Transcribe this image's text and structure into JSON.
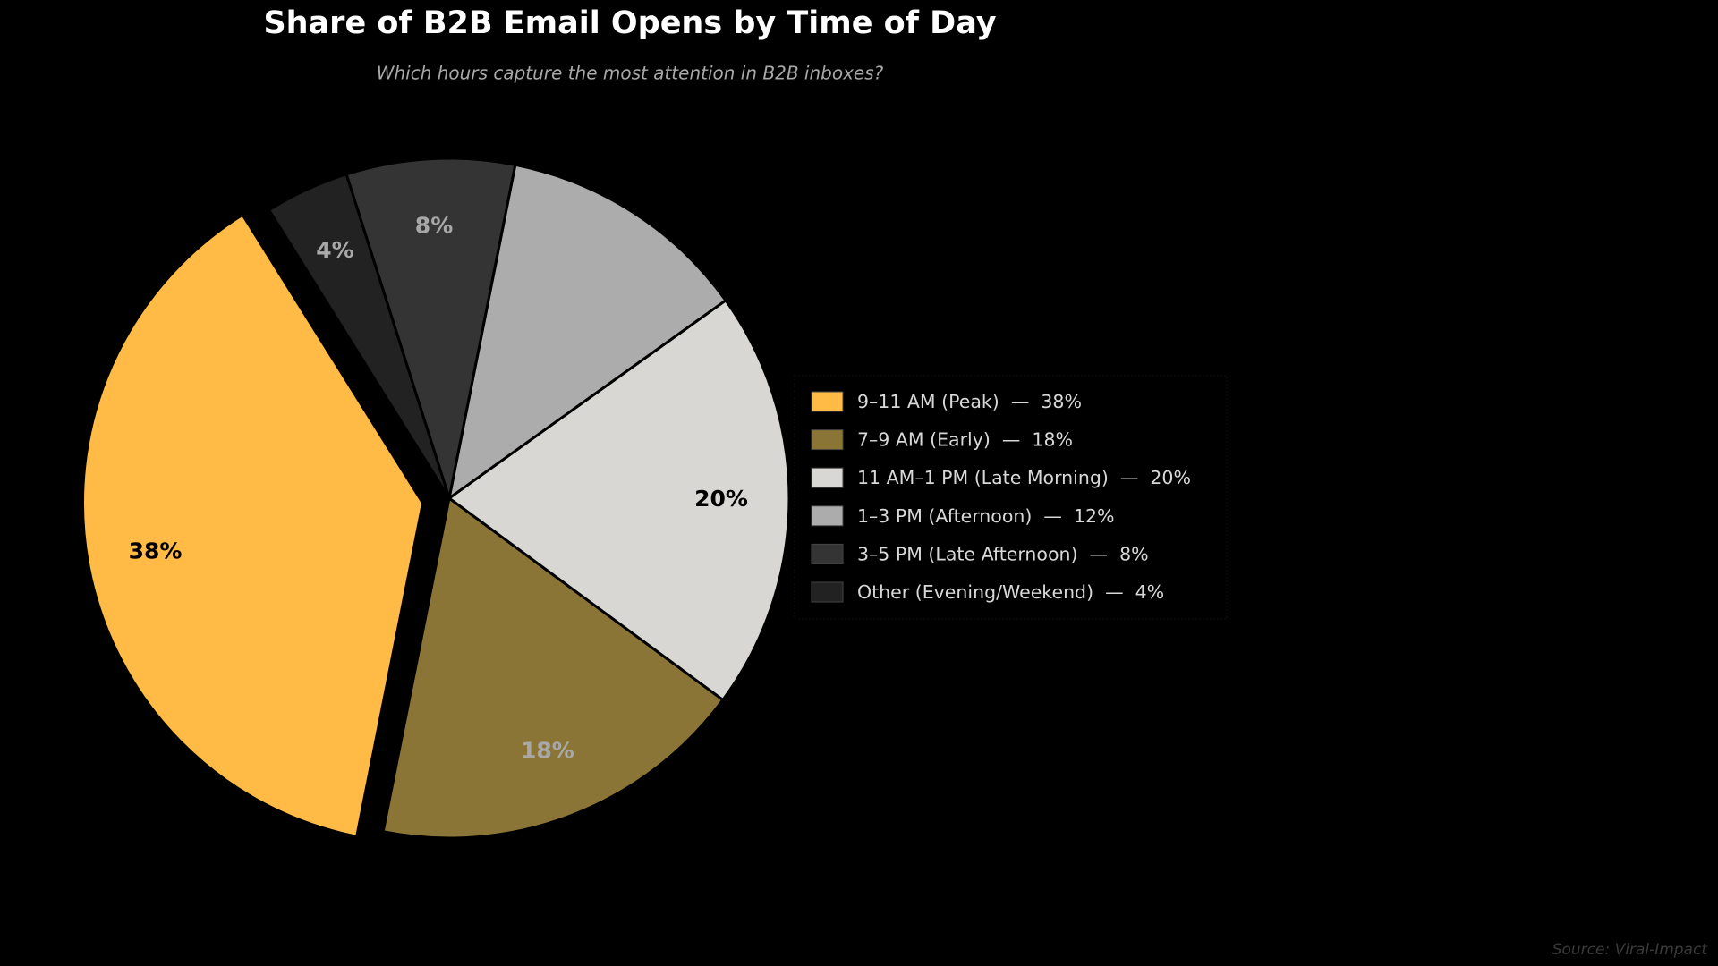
{
  "chart_data": {
    "type": "pie",
    "title": "Share of B2B Email Opens by Time of Day",
    "subtitle": "Which hours capture the most attention in B2B inboxes?",
    "categories": [
      "9–11 AM (Peak)  —  38%",
      "7–9 AM (Early)  —  18%",
      "11 AM–1 PM (Late Morning)  —  20%",
      "1–3 PM (Afternoon)  —  12%",
      "3–5 PM (Late Afternoon)  —  8%",
      "Other (Evening/Weekend)  —  4%"
    ],
    "values": [
      38,
      18,
      20,
      12,
      8,
      4
    ],
    "value_labels": [
      "38%",
      "18%",
      "20%",
      null,
      "8%",
      "4%"
    ],
    "colors": [
      "#FFBB45",
      "#8B7536",
      "#D8D7D3",
      "#ACACAC",
      "#343434",
      "#222222"
    ],
    "legend": "right",
    "source": "Source: Viral-Impact"
  }
}
